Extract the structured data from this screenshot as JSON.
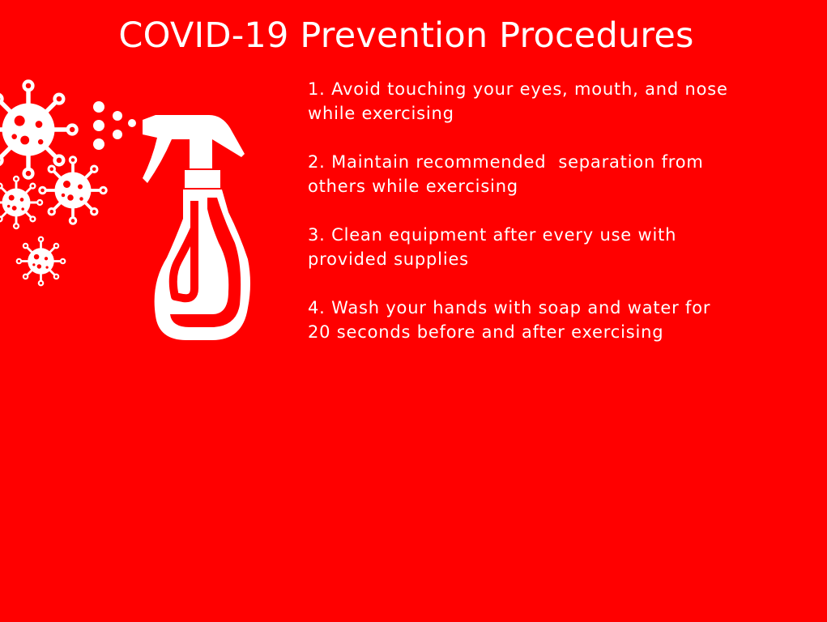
{
  "page": {
    "background_color": "#ff0000",
    "text_color": "#ffffff"
  },
  "title": "COVID-19 Prevention Procedures",
  "steps": [
    {
      "line1": "1. Avoid touching your eyes, mouth, and nose",
      "line2": "while exercising"
    },
    {
      "line1": "2. Maintain recommended  separation from",
      "line2": "others while exercising"
    },
    {
      "line1": "3. Clean equipment after every use with",
      "line2": "provided supplies"
    },
    {
      "line1": "4. Wash your hands with soap and water for",
      "line2": "20 seconds before and after exercising"
    }
  ],
  "icons": {
    "virus": "virus-icon",
    "spray_bottle": "spray-bottle-icon"
  }
}
